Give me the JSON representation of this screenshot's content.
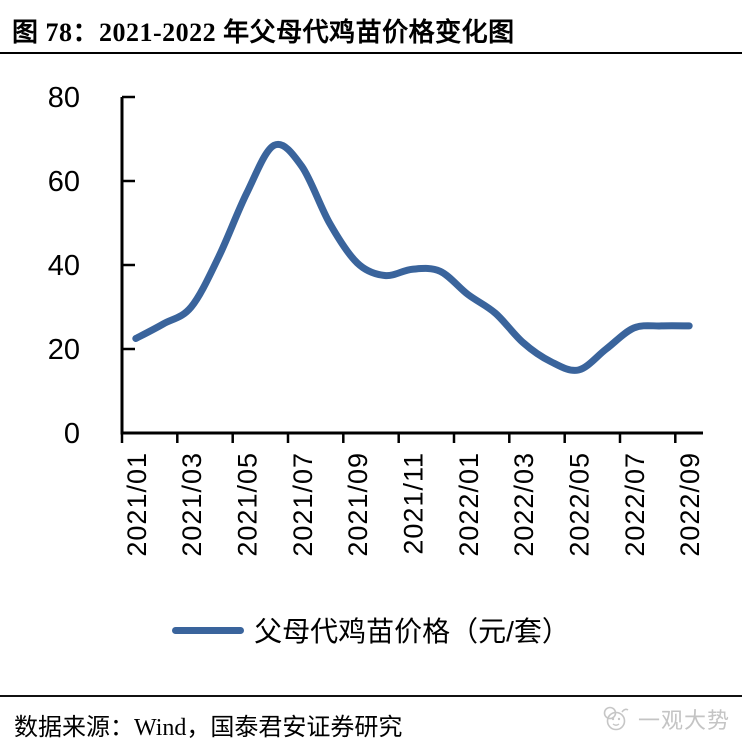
{
  "header": {
    "title": "图 78：2021-2022 年父母代鸡苗价格变化图"
  },
  "chart_data": {
    "type": "line",
    "title": "2021-2022 年父母代鸡苗价格变化图",
    "x": [
      "2021/01",
      "2021/02",
      "2021/03",
      "2021/04",
      "2021/05",
      "2021/06",
      "2021/07",
      "2021/08",
      "2021/09",
      "2021/10",
      "2021/11",
      "2021/12",
      "2022/01",
      "2022/02",
      "2022/03",
      "2022/04",
      "2022/05",
      "2022/06",
      "2022/07",
      "2022/08",
      "2022/09"
    ],
    "values": [
      22.5,
      26,
      30,
      42,
      57,
      68.5,
      63.5,
      50,
      40.5,
      37.5,
      39,
      38.5,
      33,
      28.5,
      21.5,
      17,
      15,
      20,
      25,
      25.5,
      25.5
    ],
    "x_tick_labels": [
      "2021/01",
      "2021/03",
      "2021/05",
      "2021/07",
      "2021/09",
      "2021/11",
      "2022/01",
      "2022/03",
      "2022/05",
      "2022/07",
      "2022/09"
    ],
    "y_ticks": [
      0,
      20,
      40,
      60,
      80
    ],
    "ylim": [
      0,
      80
    ],
    "xlabel": "",
    "ylabel": "",
    "grid": false,
    "legend_position": "bottom",
    "legend_label": "父母代鸡苗价格（元/套）",
    "series_name": "父母代鸡苗价格",
    "unit": "元/套",
    "line_color": "#3a649c",
    "axis_color": "#000000",
    "smooth": true
  },
  "footer": {
    "source": "数据来源：Wind，国泰君安证券研究",
    "brand": "一观大势"
  }
}
